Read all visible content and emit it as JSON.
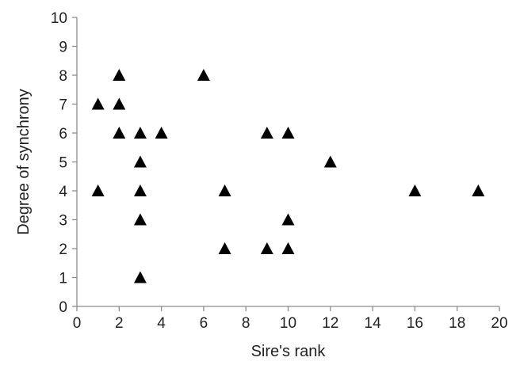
{
  "chart_data": {
    "type": "scatter",
    "title": "",
    "xlabel": "Sire's rank",
    "ylabel": "Degree of synchrony",
    "xlim": [
      0,
      20
    ],
    "ylim": [
      0,
      10
    ],
    "xticks": [
      "0",
      "2",
      "4",
      "6",
      "8",
      "10",
      "12",
      "14",
      "16",
      "18",
      "20"
    ],
    "yticks": [
      "0",
      "1",
      "2",
      "3",
      "4",
      "5",
      "6",
      "7",
      "8",
      "9",
      "10"
    ],
    "grid": false,
    "marker": "triangle",
    "marker_color": "#000000",
    "points": [
      {
        "x": 1,
        "y": 7
      },
      {
        "x": 1,
        "y": 4
      },
      {
        "x": 2,
        "y": 8
      },
      {
        "x": 2,
        "y": 7
      },
      {
        "x": 2,
        "y": 6
      },
      {
        "x": 3,
        "y": 6
      },
      {
        "x": 3,
        "y": 5
      },
      {
        "x": 3,
        "y": 4
      },
      {
        "x": 3,
        "y": 3
      },
      {
        "x": 3,
        "y": 1
      },
      {
        "x": 4,
        "y": 6
      },
      {
        "x": 6,
        "y": 8
      },
      {
        "x": 7,
        "y": 4
      },
      {
        "x": 7,
        "y": 2
      },
      {
        "x": 9,
        "y": 6
      },
      {
        "x": 9,
        "y": 2
      },
      {
        "x": 10,
        "y": 6
      },
      {
        "x": 10,
        "y": 3
      },
      {
        "x": 10,
        "y": 2
      },
      {
        "x": 12,
        "y": 5
      },
      {
        "x": 16,
        "y": 4
      },
      {
        "x": 19,
        "y": 4
      }
    ]
  }
}
